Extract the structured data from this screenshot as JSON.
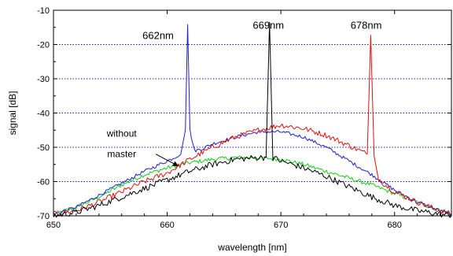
{
  "chart_data": {
    "type": "line",
    "title": "",
    "xlabel": "wavelength [nm]",
    "ylabel": "signal [dB]",
    "xlim": [
      650,
      685
    ],
    "ylim": [
      -70,
      -10
    ],
    "x_ticks": [
      650,
      660,
      670,
      680
    ],
    "y_ticks": [
      -70,
      -60,
      -50,
      -40,
      -30,
      -20,
      -10
    ],
    "x_minor_step": 2,
    "y_minor_step": 5,
    "grid": "horizontal dotted blue at major y ticks",
    "colors": {
      "blue": "#1f1fd0",
      "black": "#000000",
      "red": "#e01010",
      "green": "#10d010",
      "grid": "#1a1aa0"
    },
    "series": [
      {
        "color": "#1f1fd0",
        "x": [
          650,
          652,
          654,
          656,
          658,
          660,
          661.2,
          661.6,
          661.8,
          662.0,
          662.4,
          663,
          664,
          666,
          668,
          670,
          672,
          674,
          676,
          678,
          680,
          682,
          684,
          685
        ],
        "y": [
          -69.5,
          -67.5,
          -64.0,
          -60.5,
          -57.0,
          -54.0,
          -52.0,
          -45.0,
          -14.2,
          -45.0,
          -51.0,
          -50.5,
          -49.0,
          -47.0,
          -45.5,
          -45.5,
          -47.0,
          -50.0,
          -54.0,
          -58.0,
          -62.5,
          -66.0,
          -68.5,
          -69.5
        ]
      },
      {
        "color": "#000000",
        "x": [
          650,
          652,
          654,
          656,
          658,
          660,
          662,
          664,
          666,
          668,
          668.7,
          669.0,
          669.3,
          670,
          672,
          674,
          676,
          678,
          680,
          682,
          684,
          685
        ],
        "y": [
          -70.0,
          -69.0,
          -67.0,
          -64.5,
          -62.0,
          -59.5,
          -57.0,
          -55.0,
          -53.5,
          -53.0,
          -53.0,
          -13.5,
          -53.0,
          -54.0,
          -56.0,
          -58.5,
          -61.5,
          -64.5,
          -67.0,
          -68.5,
          -69.5,
          -70.0
        ]
      },
      {
        "color": "#e01010",
        "x": [
          650,
          652,
          654,
          656,
          658,
          660,
          662,
          664,
          666,
          668,
          670,
          672,
          674,
          676,
          677.6,
          677.9,
          678.2,
          678.6,
          679,
          680,
          682,
          684,
          685
        ],
        "y": [
          -69.5,
          -68.5,
          -66.0,
          -63.0,
          -60.0,
          -57.5,
          -53.5,
          -50.0,
          -47.0,
          -45.0,
          -43.5,
          -44.5,
          -46.5,
          -49.5,
          -52.0,
          -17.3,
          -52.5,
          -59.0,
          -60.5,
          -63.0,
          -66.0,
          -68.5,
          -69.5
        ]
      },
      {
        "color": "#10d010",
        "x": [
          650,
          652,
          654,
          656,
          658,
          660,
          662,
          664,
          666,
          668,
          670,
          672,
          674,
          676,
          678,
          680,
          682,
          684,
          685
        ],
        "y": [
          -69.5,
          -67.5,
          -64.5,
          -61.0,
          -58.0,
          -56.0,
          -54.5,
          -53.5,
          -53.0,
          -53.0,
          -53.5,
          -55.0,
          -57.0,
          -59.0,
          -61.0,
          -63.5,
          -66.0,
          -68.5,
          -69.5
        ]
      }
    ],
    "annotations": [
      {
        "text": "662nm",
        "x": 659.2,
        "y": -17.5,
        "anchor": "middle"
      },
      {
        "text": "669nm",
        "x": 668.9,
        "y": -14.5,
        "anchor": "middle"
      },
      {
        "text": "678nm",
        "x": 677.5,
        "y": -14.5,
        "anchor": "middle"
      },
      {
        "text": "without",
        "x": 656.0,
        "y": -46.0,
        "anchor": "middle"
      },
      {
        "text": "master",
        "x": 656.0,
        "y": -52.0,
        "anchor": "middle"
      }
    ],
    "arrow": {
      "from": [
        659.0,
        -52.0
      ],
      "to": [
        661.0,
        -55.5
      ]
    }
  }
}
